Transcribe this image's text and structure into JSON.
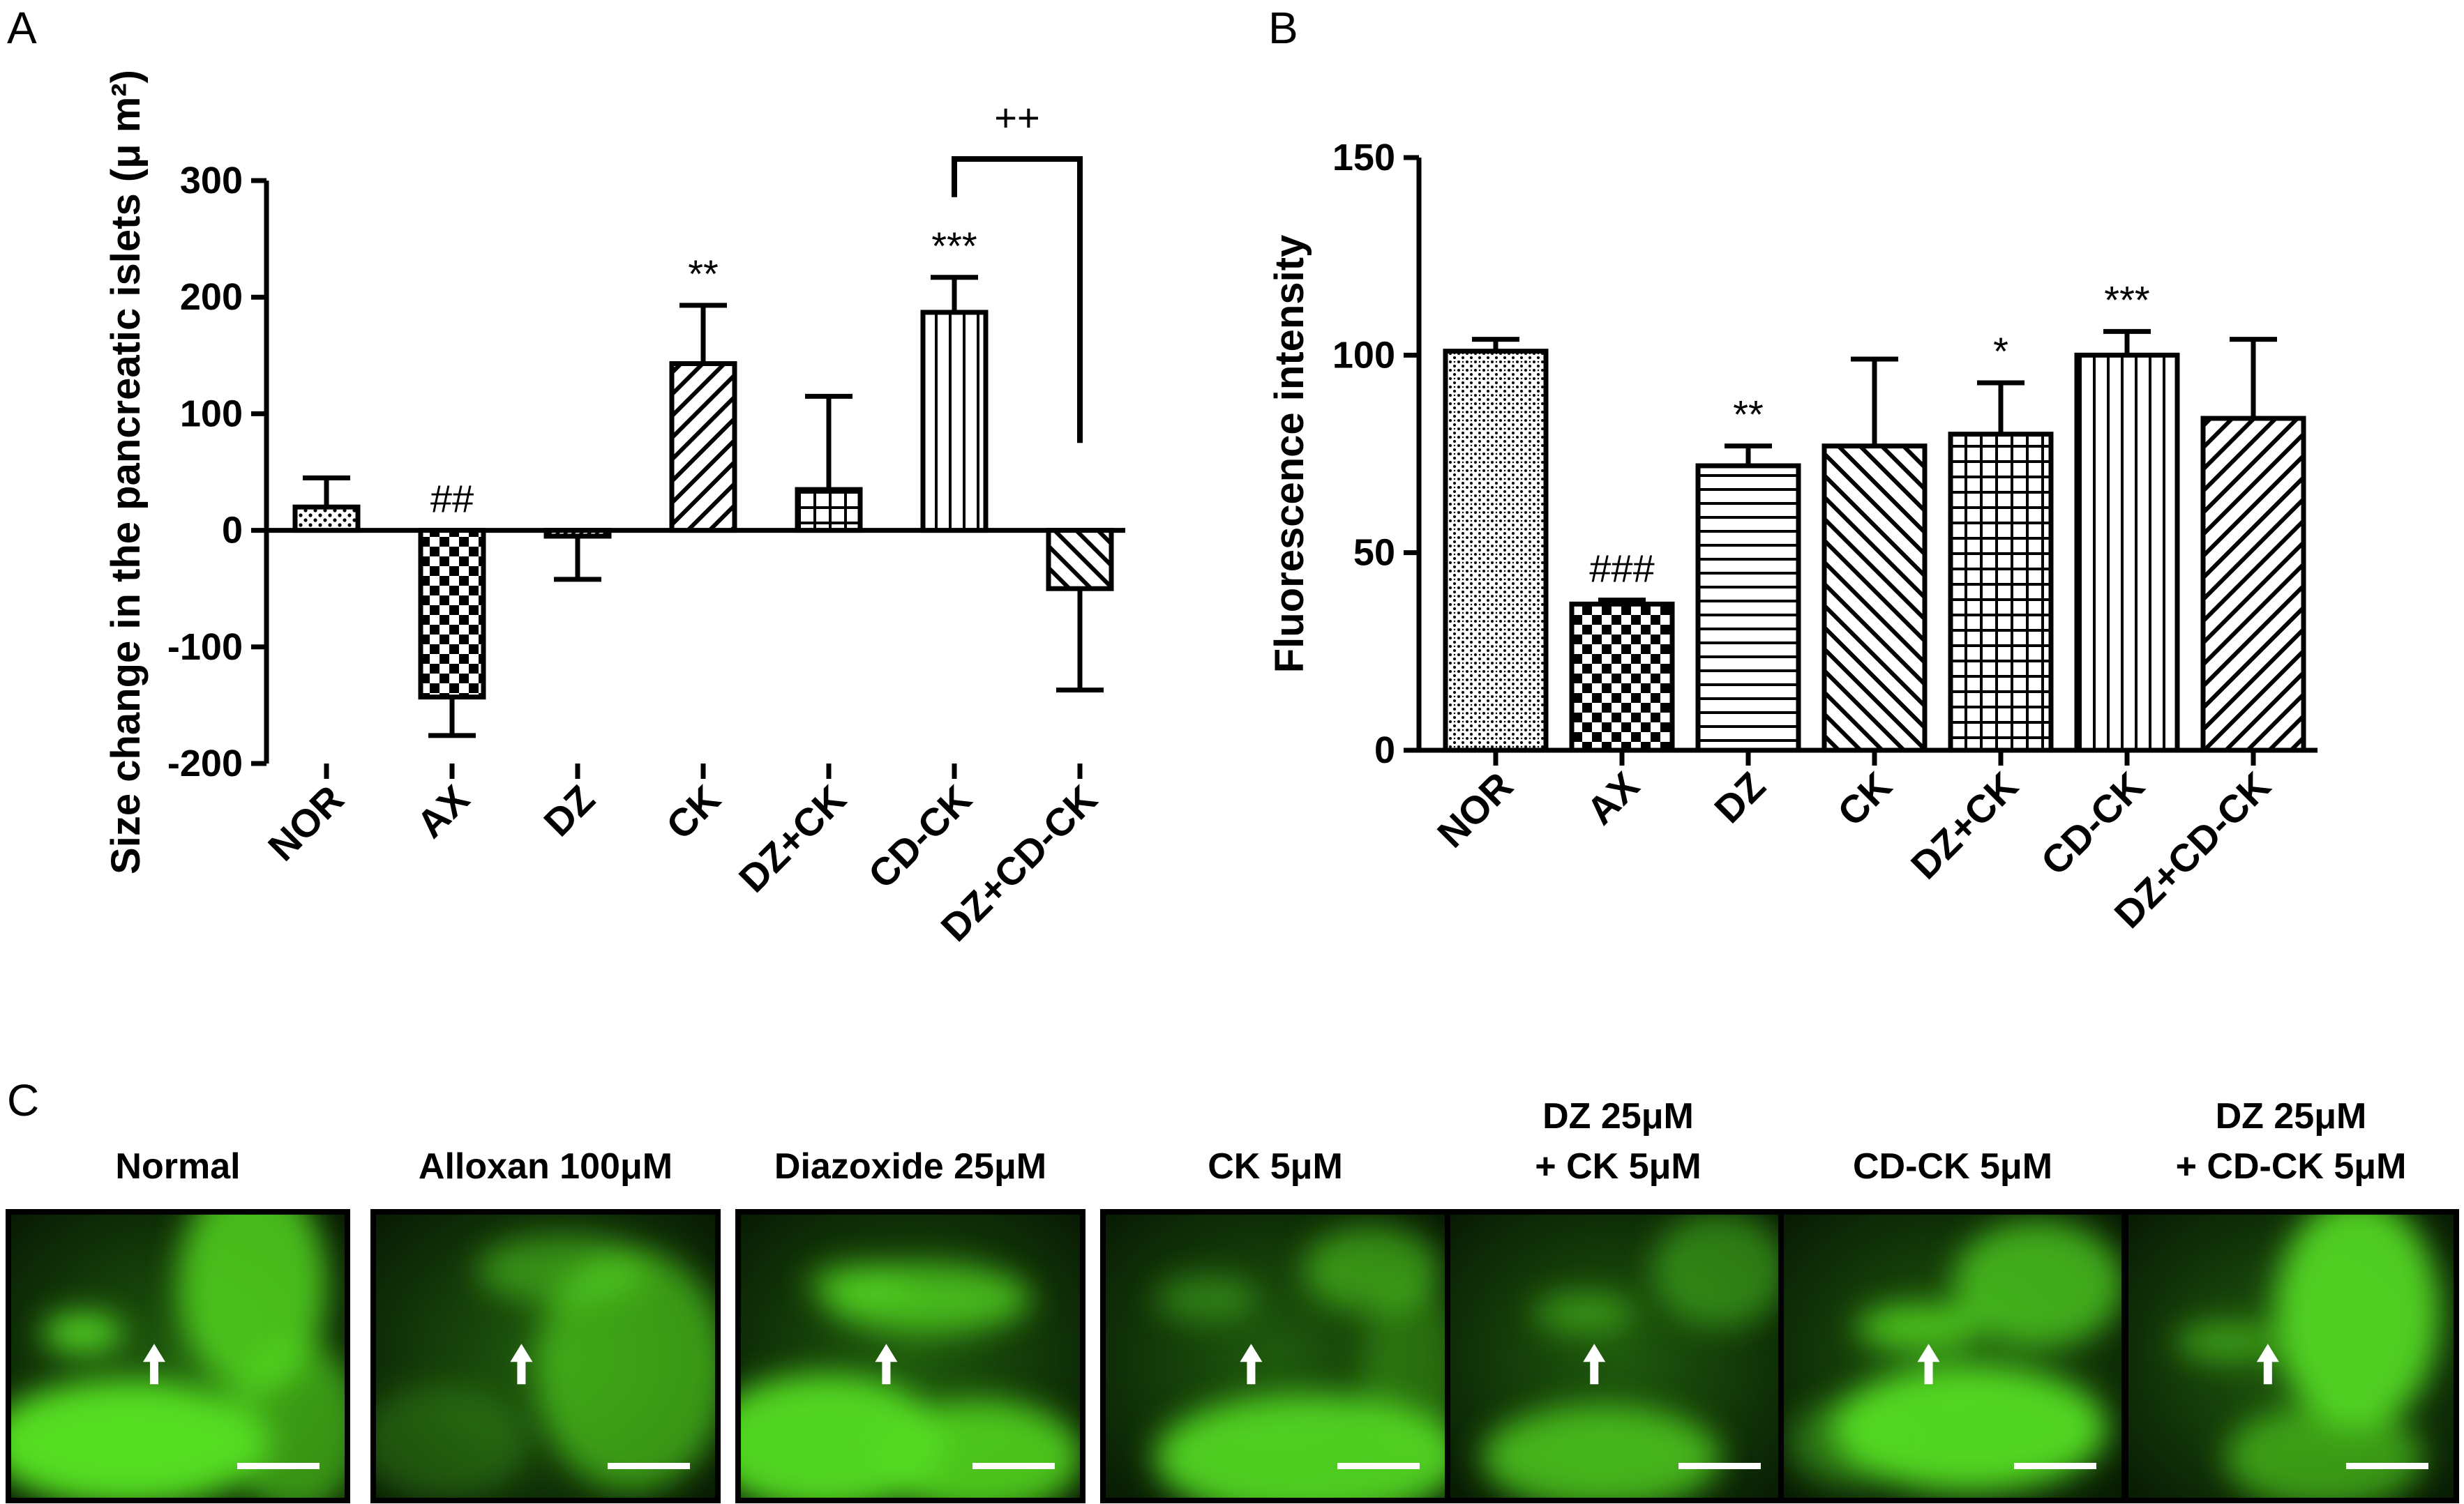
{
  "panels": {
    "a": "A",
    "b": "B",
    "c": "C"
  },
  "chart_data": [
    {
      "type": "bar",
      "panel": "A",
      "categories": [
        "NOR",
        "AX",
        "DZ",
        "CK",
        "DZ+CK",
        "CD-CK",
        "DZ+CD-CK"
      ],
      "values": [
        20,
        -143,
        -5,
        143,
        35,
        187,
        -50
      ],
      "errors": [
        25,
        33,
        37,
        50,
        80,
        30,
        87
      ],
      "annotations": [
        "",
        "##",
        "",
        "**",
        "",
        "***",
        ""
      ],
      "bracket": {
        "from": "CD-CK",
        "to": "DZ+CD-CK",
        "label": "++"
      },
      "ylabel": "Size change in the pancreatic islets (μ m²)",
      "ylim": [
        -200,
        300
      ],
      "yticks": [
        "-200",
        "-100",
        "0",
        "100",
        "200",
        "300"
      ],
      "patterns": [
        "dots",
        "checker",
        "dense-hatch",
        "hatch-right",
        "grid",
        "vlines",
        "hatch-left"
      ]
    },
    {
      "type": "bar",
      "panel": "B",
      "categories": [
        "NOR",
        "AX",
        "DZ",
        "CK",
        "DZ+CK",
        "CD-CK",
        "DZ+CD-CK"
      ],
      "values": [
        101,
        37,
        72,
        77,
        80,
        100,
        84
      ],
      "errors": [
        3,
        1,
        5,
        22,
        13,
        6,
        20
      ],
      "annotations": [
        "",
        "###",
        "**",
        "",
        "*",
        "***",
        ""
      ],
      "ylabel": "Fluorescence intensity",
      "ylim": [
        0,
        150
      ],
      "yticks": [
        "0",
        "50",
        "100",
        "150"
      ],
      "patterns": [
        "fine-grid",
        "checker",
        "hlines",
        "hatch-left",
        "grid",
        "vlines",
        "hatch-right"
      ]
    }
  ],
  "images": [
    {
      "label_lines": [
        "Normal"
      ],
      "arrow": "white-arrow-up"
    },
    {
      "label_lines": [
        "Alloxan 100μM"
      ],
      "arrow": "white-arrow-up"
    },
    {
      "label_lines": [
        "Diazoxide 25μM"
      ],
      "arrow": "white-arrow-up"
    },
    {
      "label_lines": [
        "CK 5μM"
      ],
      "arrow": "white-arrow-up"
    },
    {
      "label_lines": [
        "DZ 25μM",
        "+ CK 5μM"
      ],
      "arrow": "white-arrow-up"
    },
    {
      "label_lines": [
        "CD-CK 5μM"
      ],
      "arrow": "white-arrow-up"
    },
    {
      "label_lines": [
        "DZ 25μM",
        "+ CD-CK 5μM"
      ],
      "arrow": "white-arrow-up"
    }
  ],
  "colors": {
    "fluorescence": "#55dd22",
    "background": "#0b1a06",
    "bar_fill": "#ffffff",
    "ink": "#000000"
  }
}
